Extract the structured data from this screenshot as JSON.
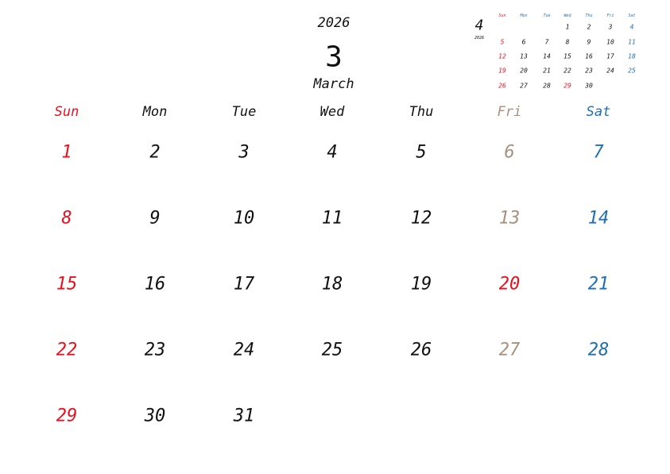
{
  "header": {
    "year": "2026",
    "month_number": "3",
    "month_name": "March"
  },
  "colors": {
    "sunday": "#e8101e",
    "saturday": "#1f6fb0",
    "friday": "#a8907e",
    "holiday": "#e8101e",
    "weekday": "#111111"
  },
  "weekdays": [
    "Sun",
    "Mon",
    "Tue",
    "Wed",
    "Thu",
    "Fri",
    "Sat"
  ],
  "weeks": [
    [
      "1",
      "2",
      "3",
      "4",
      "5",
      "6",
      "7"
    ],
    [
      "8",
      "9",
      "10",
      "11",
      "12",
      "13",
      "14"
    ],
    [
      "15",
      "16",
      "17",
      "18",
      "19",
      "20",
      "21"
    ],
    [
      "22",
      "23",
      "24",
      "25",
      "26",
      "27",
      "28"
    ],
    [
      "29",
      "30",
      "31",
      "",
      "",
      "",
      ""
    ]
  ],
  "holidays": [
    "20"
  ],
  "mini": {
    "month_number": "4",
    "year": "2026",
    "weekdays": [
      "Sun",
      "Mon",
      "Tue",
      "Wed",
      "Thu",
      "Fri",
      "Sat"
    ],
    "weeks": [
      [
        "",
        "",
        "",
        "1",
        "2",
        "3",
        "4"
      ],
      [
        "5",
        "6",
        "7",
        "8",
        "9",
        "10",
        "11"
      ],
      [
        "12",
        "13",
        "14",
        "15",
        "16",
        "17",
        "18"
      ],
      [
        "19",
        "20",
        "21",
        "22",
        "23",
        "24",
        "25"
      ],
      [
        "26",
        "27",
        "28",
        "29",
        "30",
        "",
        ""
      ]
    ],
    "holidays": [
      "29"
    ]
  }
}
